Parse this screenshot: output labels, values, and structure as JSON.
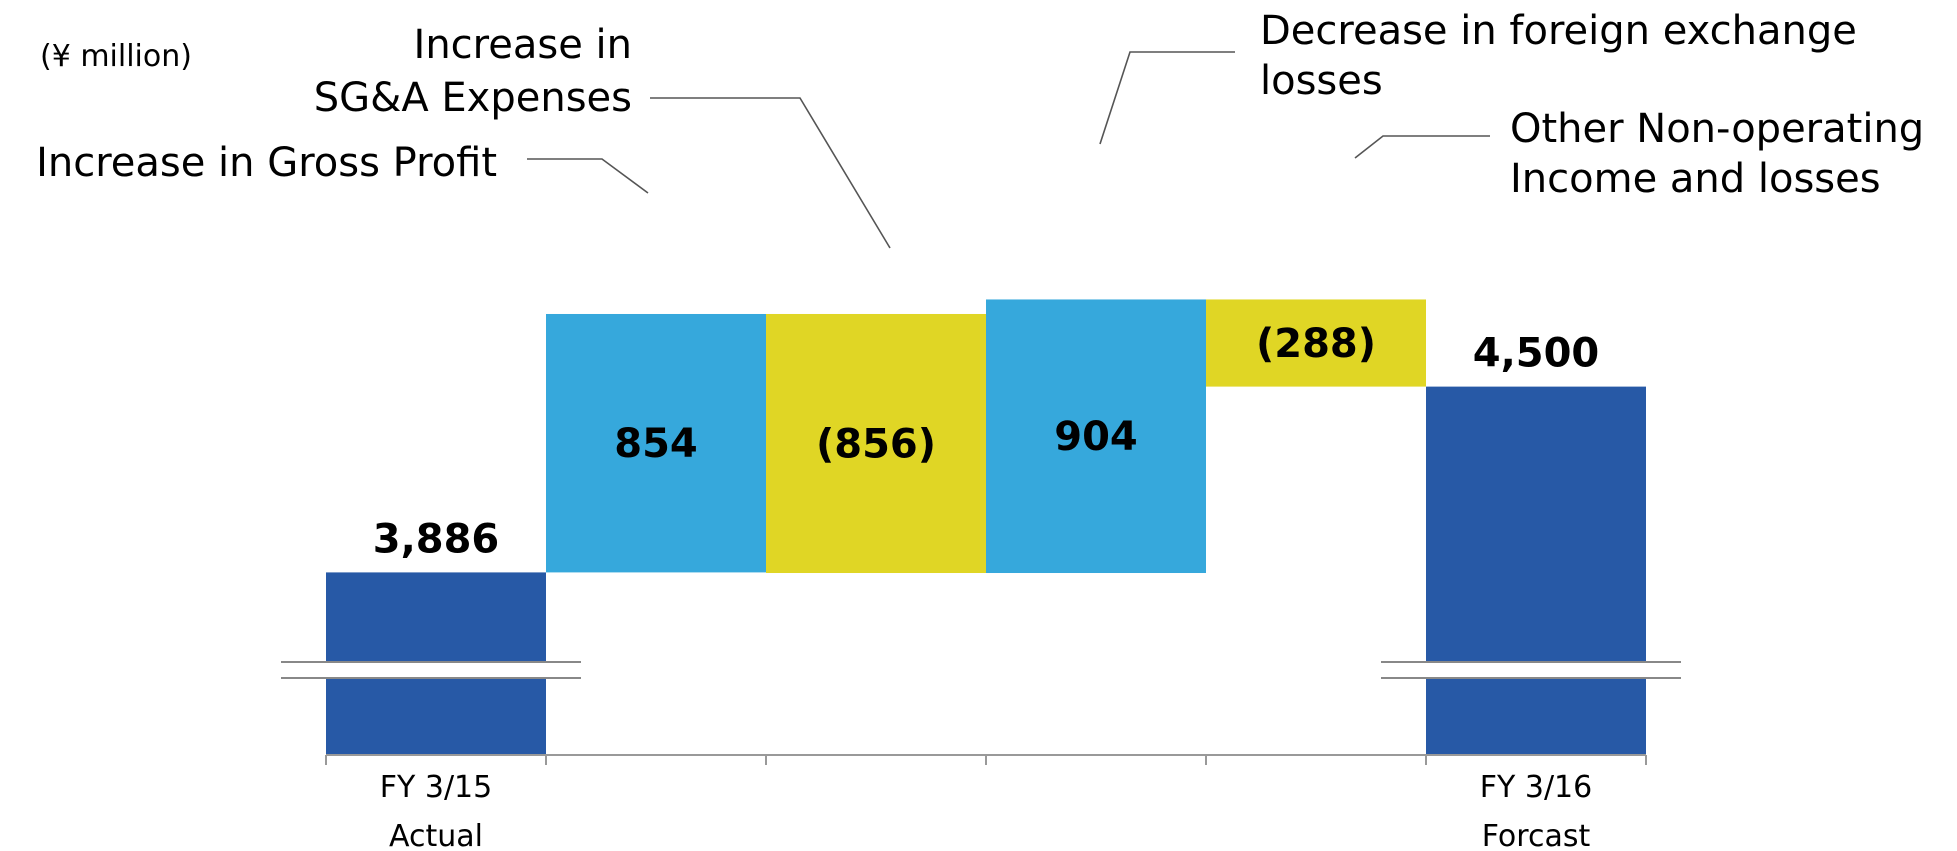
{
  "chart_data": {
    "type": "bar",
    "subtype": "waterfall",
    "unit_label": "(¥ million)",
    "categories": [
      "FY 3/15 Actual",
      "Increase in Gross Profit",
      "Increase in SG&A Expenses",
      "Decrease in foreign exchange losses",
      "Other Non-operating Income and losses",
      "FY 3/16 Forcast"
    ],
    "values": [
      3886,
      854,
      -856,
      904,
      -288,
      4500
    ],
    "value_labels": [
      "3,886",
      "854",
      "(856)",
      "904",
      "(288)",
      "4,500"
    ],
    "bar_kinds": [
      "total",
      "increase",
      "decrease",
      "increase",
      "decrease",
      "total"
    ],
    "tick_labels": [
      {
        "line1": "FY 3/15",
        "line2": "Actual"
      },
      {
        "line1": "",
        "line2": ""
      },
      {
        "line1": "",
        "line2": ""
      },
      {
        "line1": "",
        "line2": ""
      },
      {
        "line1": "",
        "line2": ""
      },
      {
        "line1": "FY 3/16",
        "line2": "Forcast"
      }
    ],
    "annotations": [
      {
        "lines": [
          "Increase in Gross Profit"
        ]
      },
      {
        "lines": [
          "Increase in",
          "SG&A Expenses"
        ]
      },
      {
        "lines": [
          "Decrease in foreign exchange",
          "losses"
        ]
      },
      {
        "lines": [
          "Other Non-operating",
          "Income and losses"
        ]
      }
    ],
    "axis_break": true,
    "grid": false,
    "colors": {
      "total": "#2759A6",
      "increase": "#36A8DC",
      "decrease": "#E0D625",
      "leader": "#555555",
      "axis": "#999999"
    }
  }
}
